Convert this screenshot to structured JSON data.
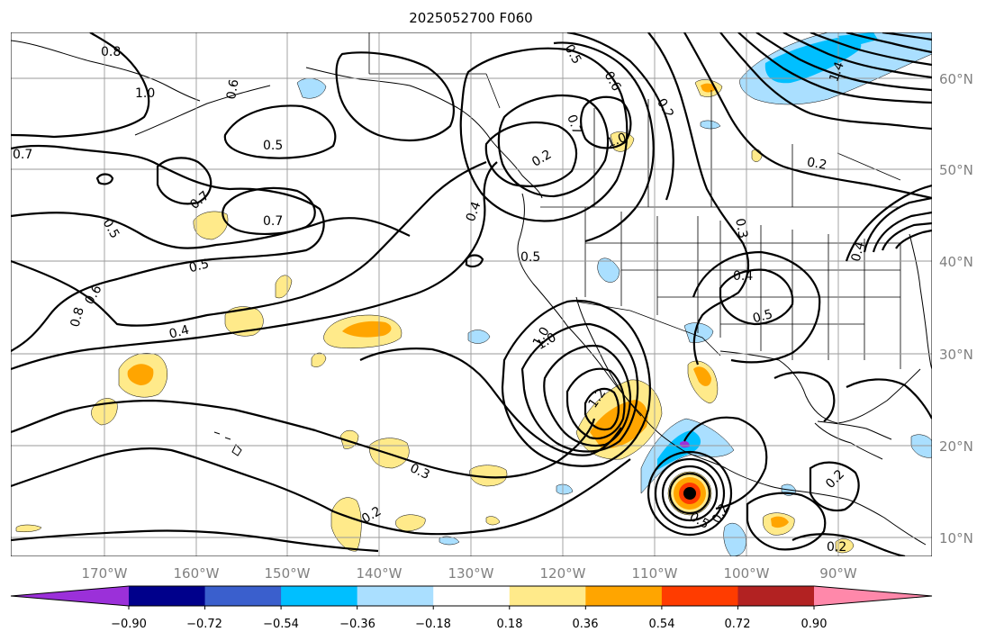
{
  "title": "2025052700 F060",
  "map": {
    "lon_labels": [
      "170°W",
      "160°W",
      "150°W",
      "140°W",
      "130°W",
      "120°W",
      "110°W",
      "100°W",
      "90°W"
    ],
    "lat_labels": [
      "60°N",
      "50°N",
      "40°N",
      "30°N",
      "20°N",
      "10°N"
    ],
    "contour_labels": [
      "0.8",
      "1.0",
      "0.6",
      "0.5",
      "0.7",
      "0.5",
      "0.7",
      "0.7",
      "0.5",
      "0.5",
      "0.8",
      "0.6",
      "0.4",
      "0.4",
      "0.2",
      "0.5",
      "0.6",
      "0.7",
      "1.0",
      "1.0",
      "1.2",
      "0.3",
      "0.2",
      "0.2",
      "0.3",
      "0.4",
      "0.5",
      "0.2",
      "1.4",
      "0.2",
      "0.4",
      "0.5",
      "0.2",
      "0.2",
      "1.0"
    ],
    "shading_colors": {
      "light_yellow": "#ffea8a",
      "orange": "#ffa500",
      "red_orange": "#ff3c00",
      "light_blue": "#aadfff",
      "sky_blue": "#00bfff",
      "black_center": "#000000"
    }
  },
  "colorbar": {
    "tick_labels": [
      "−0.90",
      "−0.72",
      "−0.54",
      "−0.36",
      "−0.18",
      "0.18",
      "0.36",
      "0.54",
      "0.72",
      "0.90"
    ],
    "colors": [
      "#9b30d9",
      "#00008b",
      "#3a5fcd",
      "#00bfff",
      "#aadfff",
      "#ffffff",
      "#ffea8a",
      "#ffa500",
      "#ff3c00",
      "#b22222",
      "#ff88aa"
    ]
  }
}
